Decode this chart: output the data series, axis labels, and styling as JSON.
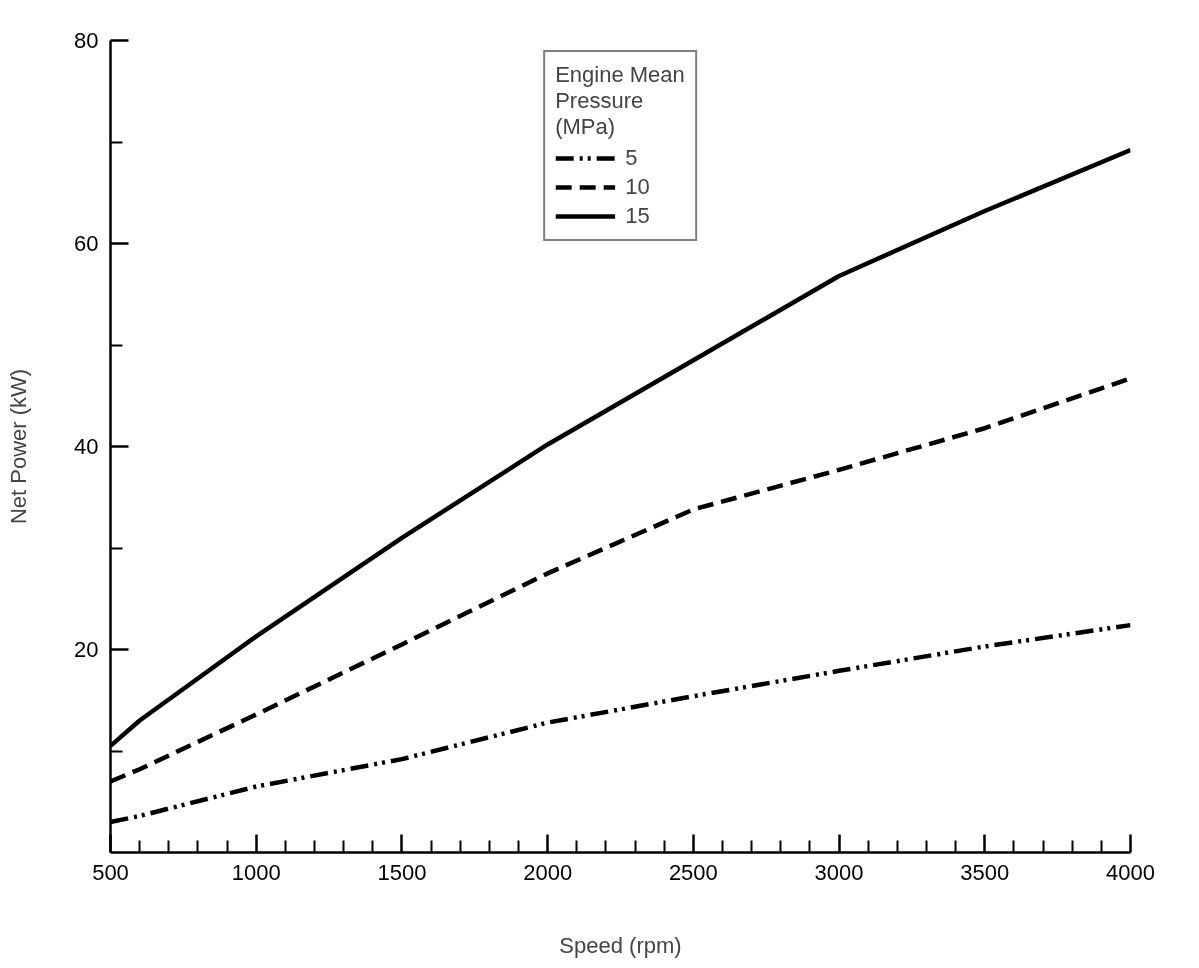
{
  "chart_data": {
    "type": "line",
    "xlabel": "Speed (rpm)",
    "ylabel": "Net Power (kW)",
    "legend_title": "Engine Mean Pressure (MPa)",
    "x": [
      500,
      600,
      1000,
      1500,
      2000,
      2500,
      3000,
      3500,
      4000
    ],
    "series": [
      {
        "name": "5",
        "color": "#000000",
        "line_style": "dashdotdot",
        "values": [
          3,
          3.6,
          6.5,
          9.2,
          12.8,
          15.4,
          17.9,
          20.3,
          22.4
        ]
      },
      {
        "name": "10",
        "color": "#000000",
        "line_style": "dashed",
        "values": [
          7,
          8.2,
          13.6,
          20.5,
          27.5,
          33.8,
          37.7,
          41.8,
          46.7
        ]
      },
      {
        "name": "15",
        "color": "#000000",
        "line_style": "solid",
        "values": [
          10.5,
          13,
          21.3,
          31,
          40.2,
          48.5,
          56.8,
          63.2,
          69.2
        ]
      }
    ],
    "xlim": [
      500,
      4000
    ],
    "ylim": [
      0,
      80
    ],
    "xticks": [
      500,
      {
        "value": 600,
        "label": null
      },
      {
        "value": 700,
        "label": null
      },
      {
        "value": 800,
        "label": null
      },
      {
        "value": 900,
        "label": null
      },
      1000,
      {
        "value": 1100,
        "label": null
      },
      {
        "value": 1200,
        "label": null
      },
      {
        "value": 1300,
        "label": null
      },
      {
        "value": 1400,
        "label": null
      },
      1500,
      {
        "value": 1600,
        "label": null
      },
      {
        "value": 1700,
        "label": null
      },
      {
        "value": 1800,
        "label": null
      },
      {
        "value": 1900,
        "label": null
      },
      2000,
      {
        "value": 2100,
        "label": null
      },
      {
        "value": 2200,
        "label": null
      },
      {
        "value": 2300,
        "label": null
      },
      {
        "value": 2400,
        "label": null
      },
      2500,
      {
        "value": 2600,
        "label": null
      },
      {
        "value": 2700,
        "label": null
      },
      {
        "value": 2800,
        "label": null
      },
      {
        "value": 2900,
        "label": null
      },
      3000,
      {
        "value": 3100,
        "label": null
      },
      {
        "value": 3200,
        "label": null
      },
      {
        "value": 3300,
        "label": null
      },
      {
        "value": 3400,
        "label": null
      },
      3500,
      {
        "value": 3600,
        "label": null
      },
      {
        "value": 3700,
        "label": null
      },
      {
        "value": 3800,
        "label": null
      },
      {
        "value": 3900,
        "label": null
      },
      4000
    ],
    "yticks": [
      {
        "value": 10,
        "label": null
      },
      20,
      {
        "value": 30,
        "label": null
      },
      40,
      {
        "value": 50,
        "label": null
      },
      60,
      {
        "value": 70,
        "label": null
      },
      80
    ],
    "grid": false,
    "legend": "top",
    "marker": "none"
  }
}
